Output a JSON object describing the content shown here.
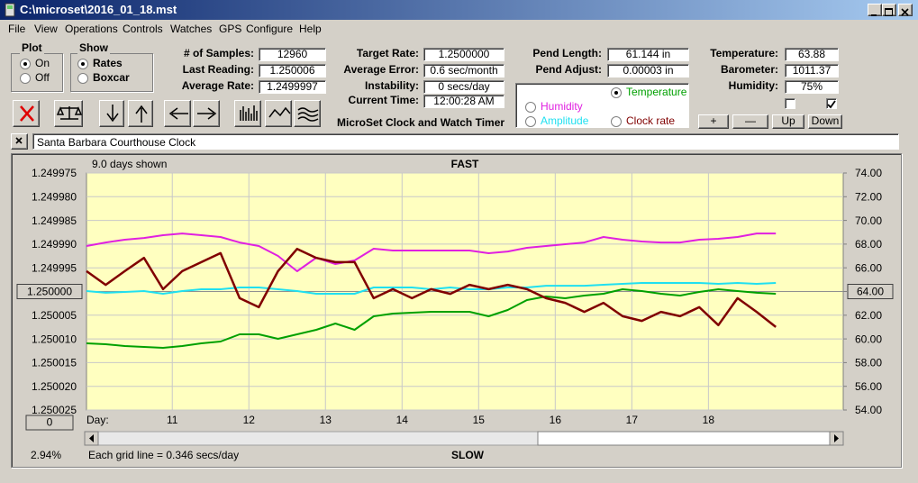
{
  "window": {
    "title": "C:\\microset\\2016_01_18.mst",
    "menu": [
      "File",
      "View",
      "Operations",
      "Controls",
      "Watches",
      "GPS",
      "Configure",
      "Help"
    ]
  },
  "panel": {
    "plot": {
      "title": "Plot",
      "options": [
        {
          "label": "On",
          "checked": true
        },
        {
          "label": "Off",
          "checked": false
        }
      ]
    },
    "show": {
      "title": "Show",
      "options": [
        {
          "label": "Rates",
          "checked": true
        },
        {
          "label": "Boxcar",
          "checked": false
        }
      ]
    },
    "fields": [
      [
        {
          "label": "# of Samples:",
          "value": "12960"
        },
        {
          "label": "Last Reading:",
          "value": "1.250006"
        },
        {
          "label": "Average Rate:",
          "value": "1.2499997"
        }
      ],
      [
        {
          "label": "Target Rate:",
          "value": "1.2500000"
        },
        {
          "label": "Average Error:",
          "value": "0.6 sec/month"
        },
        {
          "label": "Instability:",
          "value": "0 secs/day"
        },
        {
          "label": "Current Time:",
          "value": "12:00:28 AM"
        }
      ],
      [
        {
          "label": "Pend Length:",
          "value": "61.144 in"
        },
        {
          "label": "Pend Adjust:",
          "value": "0.00003 in"
        }
      ],
      [
        {
          "label": "Temperature:",
          "value": "63.88"
        },
        {
          "label": "Barometer:",
          "value": "1011.37"
        },
        {
          "label": "Humidity:",
          "value": "75%"
        }
      ]
    ],
    "app_label": "MicroSet Clock and Watch Timer",
    "buttons": [
      "+",
      "—",
      "Up",
      "Down"
    ],
    "checkboxes": [
      false,
      true
    ]
  },
  "clock_name": "Santa Barbara Courthouse Clock",
  "status": {
    "days_shown": "9.0 days shown",
    "top_label": "FAST",
    "bottom_label": "SLOW",
    "day_label": "Day:",
    "grid_note": "Each grid line = 0.346 secs/day",
    "percent": "2.94%",
    "offset_button": "0"
  },
  "chart_data": {
    "type": "line",
    "background": "#ffffc0",
    "grid": true,
    "x": [
      9.88,
      10.13,
      10.38,
      10.63,
      10.88,
      11.13,
      11.38,
      11.63,
      11.88,
      12.13,
      12.38,
      12.63,
      12.88,
      13.13,
      13.38,
      13.63,
      13.88,
      14.13,
      14.38,
      14.63,
      14.88,
      15.13,
      15.38,
      15.63,
      15.88,
      16.13,
      16.38,
      16.63,
      16.88,
      17.13,
      17.38,
      17.63,
      17.88,
      18.13,
      18.38,
      18.63,
      18.88
    ],
    "xlim": [
      9.88,
      19.76
    ],
    "xticks": [
      11,
      12,
      13,
      14,
      15,
      16,
      17,
      18
    ],
    "ylim": [
      1.250025,
      1.249975
    ],
    "yticks": [
      1.249975,
      {
        "value": 1.24998,
        "label": "1.249980"
      },
      1.249985,
      {
        "value": 1.24999,
        "label": "1.249990"
      },
      1.249995,
      {
        "value": 1.25,
        "label": "1.250000"
      },
      1.250005,
      {
        "value": 1.25001,
        "label": "1.250010"
      },
      1.250015,
      {
        "value": 1.25002,
        "label": "1.250020"
      },
      1.250025
    ],
    "y2lim": [
      54,
      74
    ],
    "y2ticks": [
      {
        "value": 54,
        "label": "54.00"
      },
      {
        "value": 56,
        "label": "56.00"
      },
      {
        "value": 58,
        "label": "58.00"
      },
      {
        "value": 60,
        "label": "60.00"
      },
      {
        "value": 62,
        "label": "62.00"
      },
      {
        "value": 64,
        "label": "64.00"
      },
      {
        "value": 66,
        "label": "66.00"
      },
      {
        "value": 68,
        "label": "68.00"
      },
      {
        "value": 70,
        "label": "70.00"
      },
      {
        "value": 72,
        "label": "72.00"
      },
      {
        "value": 74,
        "label": "74.00"
      }
    ],
    "series": [
      {
        "name": "Temperature",
        "color": "#00a000",
        "axis": "y2",
        "selected": true,
        "values": [
          59.63,
          59.55,
          59.4,
          59.32,
          59.25,
          59.4,
          59.63,
          59.78,
          60.39,
          60.39,
          60.01,
          60.39,
          60.77,
          61.3,
          60.77,
          61.91,
          62.14,
          62.21,
          62.29,
          62.29,
          62.29,
          61.91,
          62.44,
          63.28,
          63.58,
          63.43,
          63.66,
          63.81,
          64.19,
          64.04,
          63.81,
          63.66,
          63.96,
          64.19,
          64.04,
          63.89,
          63.81
        ]
      },
      {
        "name": "Humidity",
        "color": "#e020e0",
        "axis": "y2",
        "selected": false,
        "values": [
          67.84,
          68.14,
          68.37,
          68.52,
          68.75,
          68.9,
          68.75,
          68.6,
          68.14,
          67.84,
          67.0,
          65.71,
          66.85,
          66.32,
          66.62,
          67.61,
          67.46,
          67.46,
          67.46,
          67.46,
          67.46,
          67.23,
          67.38,
          67.69,
          67.84,
          67.99,
          68.14,
          68.6,
          68.37,
          68.22,
          68.14,
          68.14,
          68.37,
          68.45,
          68.6,
          68.9,
          68.9
        ]
      },
      {
        "name": "Amplitude",
        "color": "#20e0f0",
        "axis": "y2",
        "selected": false,
        "values": [
          64.04,
          63.89,
          63.96,
          64.04,
          63.81,
          64.04,
          64.19,
          64.19,
          64.34,
          64.34,
          64.19,
          64.04,
          63.81,
          63.81,
          63.81,
          64.34,
          64.34,
          64.34,
          64.19,
          64.34,
          64.19,
          64.19,
          64.34,
          64.34,
          64.49,
          64.49,
          64.49,
          64.57,
          64.65,
          64.72,
          64.72,
          64.72,
          64.72,
          64.65,
          64.72,
          64.65,
          64.72
        ]
      },
      {
        "name": "Clock rate",
        "color": "#800000",
        "selected": false,
        "values": [
          1.2499957,
          1.2499986,
          1.2499957,
          1.2499929,
          1.2499995,
          1.2499957,
          1.2499938,
          1.2499919,
          1.2500014,
          1.2500033,
          1.2499957,
          1.249991,
          1.2499929,
          1.2499938,
          1.2499938,
          1.2500014,
          1.2499995,
          1.2500014,
          1.2499995,
          1.2500005,
          1.2499986,
          1.2499995,
          1.2499986,
          1.2499995,
          1.2500014,
          1.2500024,
          1.2500043,
          1.2500024,
          1.2500052,
          1.2500062,
          1.2500043,
          1.2500052,
          1.2500033,
          1.2500071,
          1.2500014,
          1.2500043,
          1.2500075
        ]
      }
    ]
  }
}
